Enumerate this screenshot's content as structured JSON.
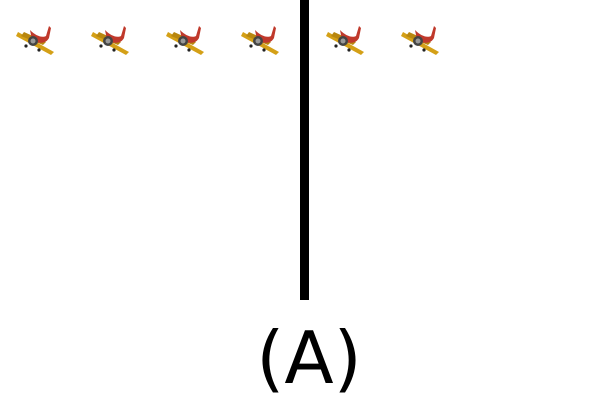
{
  "caption": "(A)",
  "planes": {
    "left_group_count": 4,
    "right_group_count": 2,
    "icon": "airplane-icon"
  },
  "colors": {
    "background": "#ffffff",
    "divider": "#000000",
    "plane_body": "#c0392b",
    "plane_wing": "#d4a017",
    "plane_engine": "#444444"
  }
}
